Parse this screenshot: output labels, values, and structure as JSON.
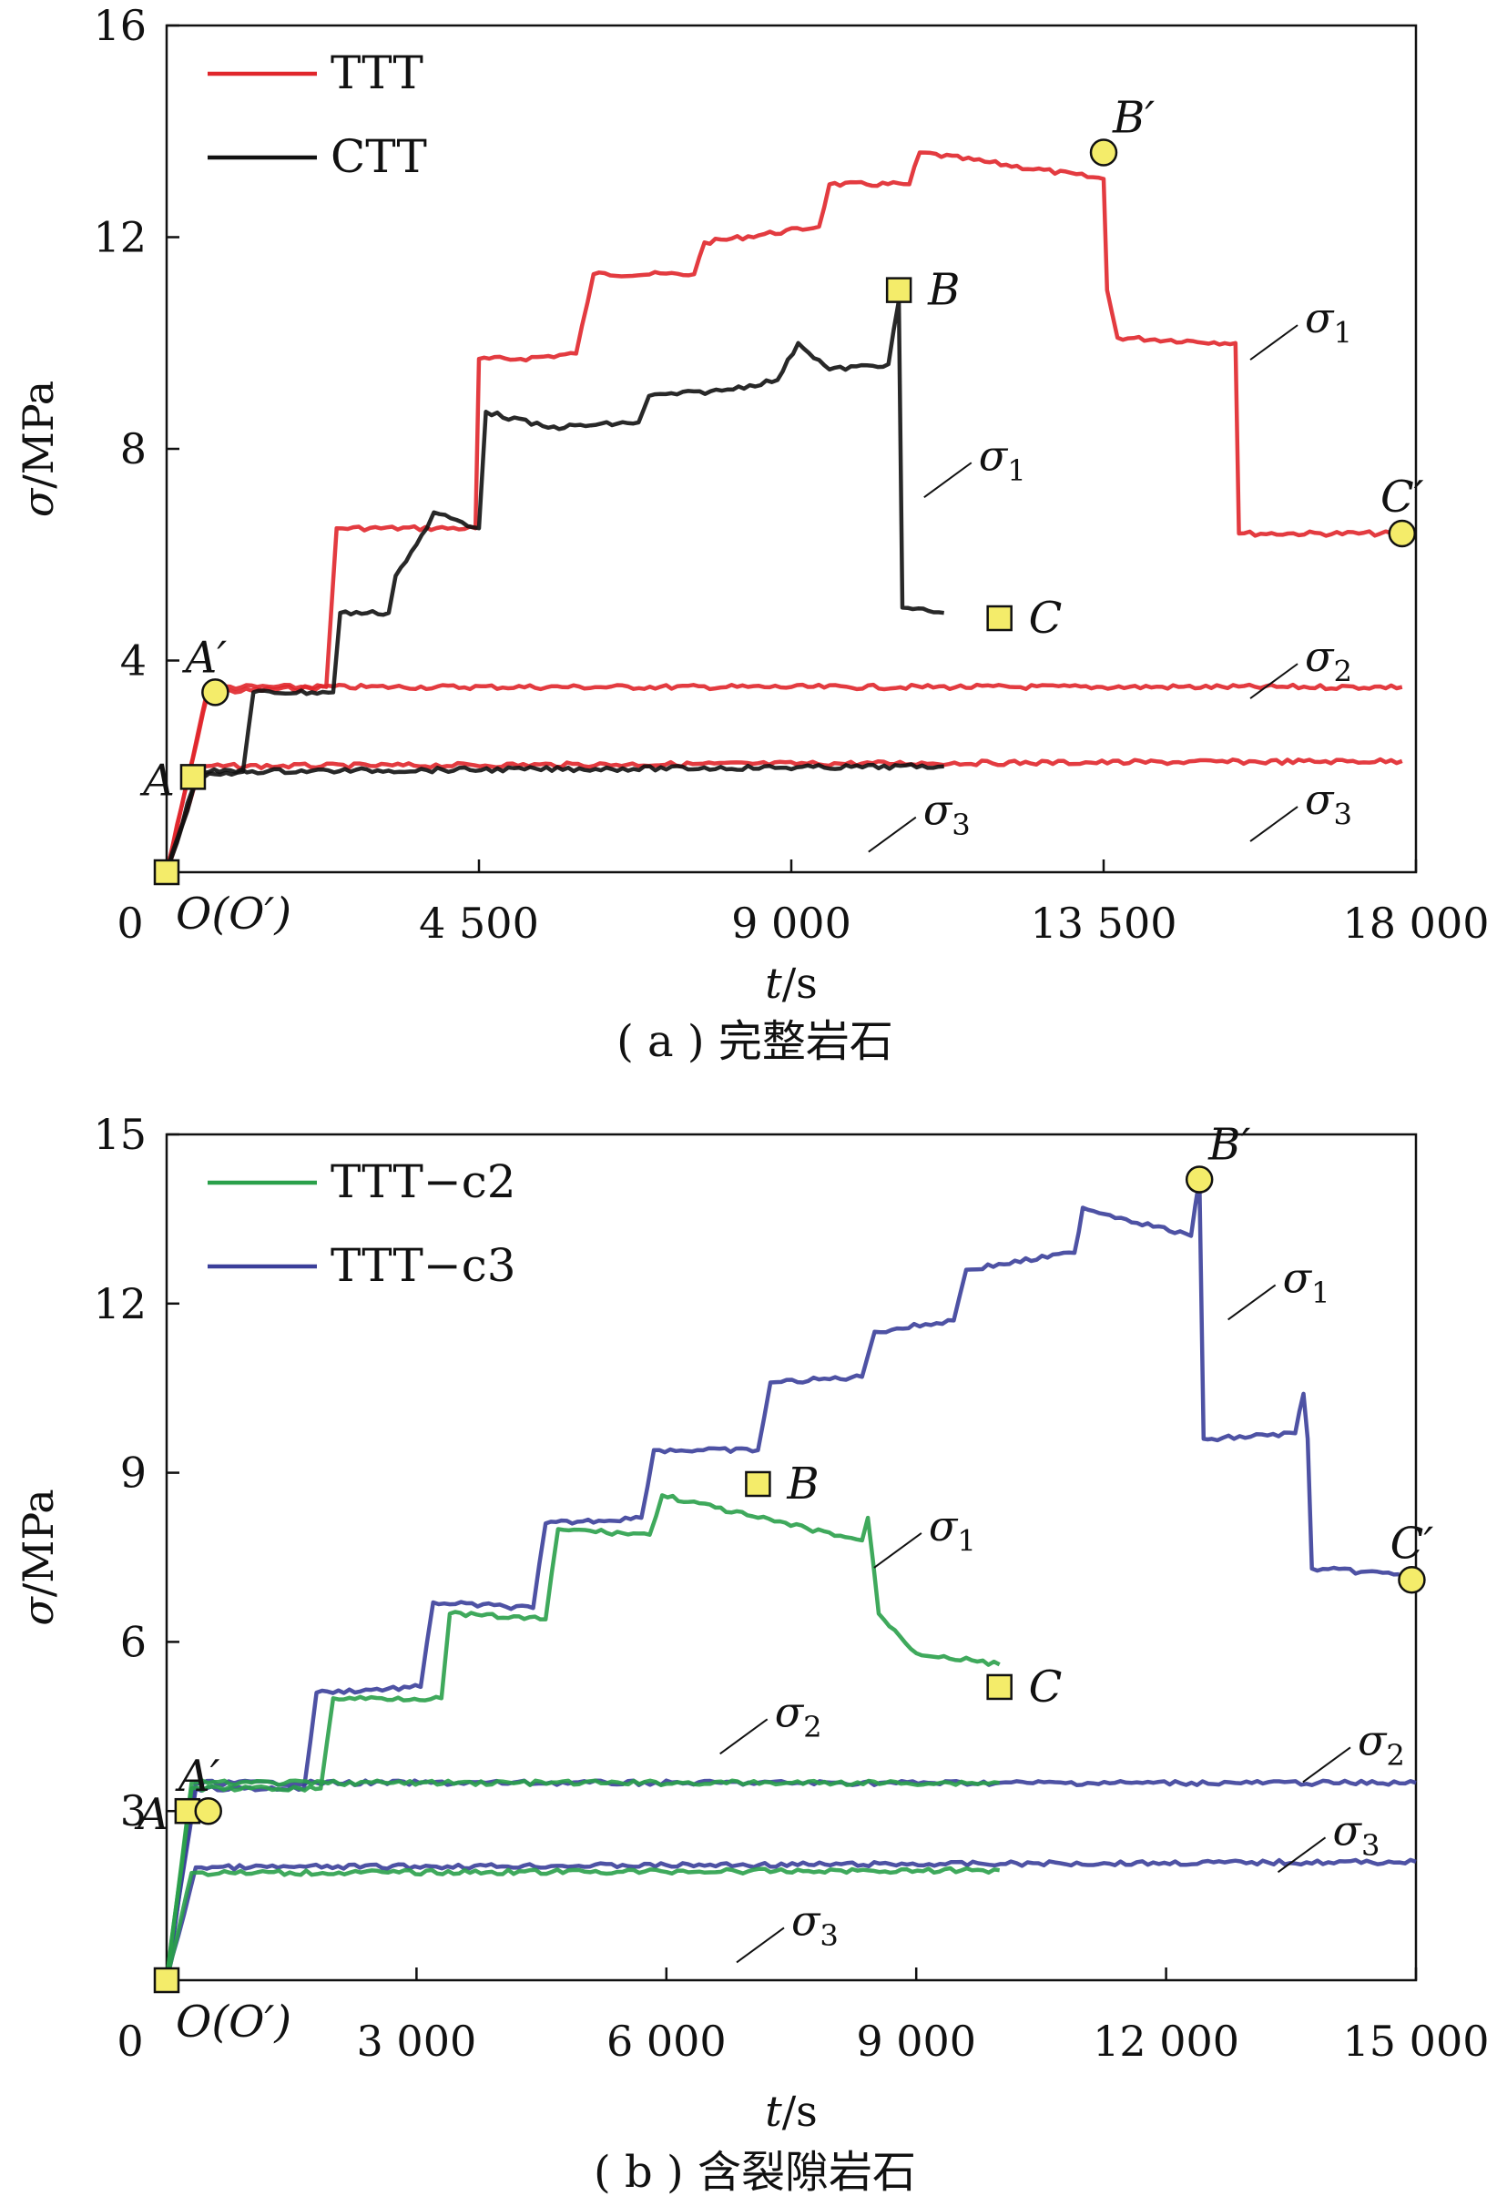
{
  "chart_data": [
    {
      "type": "line",
      "caption": "( a ) 完整岩石",
      "xlabel_var": "t",
      "xlabel_unit": "/s",
      "ylabel_var": "σ",
      "ylabel_unit": "/MPa",
      "xlim": [
        0,
        18000
      ],
      "ylim": [
        0,
        16
      ],
      "x_ticks": [
        4500,
        9000,
        13500,
        18000
      ],
      "x_tick_labels": [
        "4 500",
        "9 000",
        "13 500",
        "18 000"
      ],
      "y_ticks": [
        4,
        8,
        12,
        16
      ],
      "y_tick_labels": [
        "4",
        "8",
        "12",
        "16"
      ],
      "origin_label": "0",
      "legend": [
        "TTT",
        "CTT"
      ],
      "legend_position": "top-left",
      "colors": {
        "TTT": "#e0262b",
        "CTT": "#111111"
      },
      "series": [
        {
          "name": "TTT",
          "role": "σ1",
          "color": "#e0262b",
          "x": [
            0,
            600,
            2300,
            2450,
            4450,
            4500,
            5100,
            5900,
            6150,
            7600,
            7750,
            9400,
            9550,
            10700,
            10850,
            13500,
            13550,
            13700,
            15400,
            15450,
            17800
          ],
          "y": [
            0,
            3.4,
            3.5,
            6.5,
            6.5,
            9.7,
            9.7,
            9.8,
            11.3,
            11.3,
            11.9,
            12.2,
            13.0,
            13.0,
            13.6,
            13.1,
            11.0,
            10.1,
            10.0,
            6.4,
            6.4
          ]
        },
        {
          "name": "TTT",
          "role": "σ2",
          "color": "#e0262b",
          "x": [
            0,
            600,
            17800
          ],
          "y": [
            0,
            3.5,
            3.5
          ]
        },
        {
          "name": "TTT",
          "role": "σ3",
          "color": "#e0262b",
          "x": [
            0,
            500,
            17800
          ],
          "y": [
            0,
            2.0,
            2.1
          ]
        },
        {
          "name": "CTT",
          "role": "σ1",
          "color": "#111111",
          "x": [
            0,
            450,
            1100,
            1250,
            2400,
            2500,
            3200,
            3300,
            3750,
            3850,
            4500,
            4600,
            5500,
            6800,
            6950,
            8000,
            8800,
            9100,
            9550,
            10400,
            10550,
            10600,
            11200
          ],
          "y": [
            0,
            1.8,
            1.9,
            3.4,
            3.4,
            4.9,
            4.9,
            5.6,
            6.5,
            6.8,
            6.5,
            8.7,
            8.4,
            8.5,
            9.0,
            9.1,
            9.3,
            10.0,
            9.5,
            9.6,
            10.8,
            5.0,
            4.9
          ]
        },
        {
          "name": "CTT",
          "role": "σ3",
          "color": "#111111",
          "x": [
            0,
            450,
            11200
          ],
          "y": [
            0,
            1.9,
            2.0
          ]
        }
      ],
      "markers": [
        {
          "label": "O(O′)",
          "shape": "square",
          "x": 0,
          "y": 0
        },
        {
          "label": "A",
          "shape": "square",
          "x": 380,
          "y": 1.8
        },
        {
          "label": "A′",
          "shape": "circle",
          "x": 700,
          "y": 3.4
        },
        {
          "label": "B",
          "shape": "square",
          "x": 10550,
          "y": 11.0
        },
        {
          "label": "C",
          "shape": "square",
          "x": 12000,
          "y": 4.8
        },
        {
          "label": "B′",
          "shape": "circle",
          "x": 13500,
          "y": 13.6
        },
        {
          "label": "C′",
          "shape": "circle",
          "x": 17800,
          "y": 6.4
        }
      ],
      "annotations": [
        {
          "text": "σ1",
          "x": 16400,
          "y": 10.2
        },
        {
          "text": "σ1",
          "x": 11700,
          "y": 7.6
        },
        {
          "text": "σ2",
          "x": 16400,
          "y": 3.8
        },
        {
          "text": "σ3",
          "x": 16400,
          "y": 1.1
        },
        {
          "text": "σ3",
          "x": 10900,
          "y": 0.9
        }
      ]
    },
    {
      "type": "line",
      "caption": "( b ) 含裂隙岩石",
      "xlabel_var": "t",
      "xlabel_unit": "/s",
      "ylabel_var": "σ",
      "ylabel_unit": "/MPa",
      "xlim": [
        0,
        15000
      ],
      "ylim": [
        0,
        15
      ],
      "x_ticks": [
        3000,
        6000,
        9000,
        12000,
        15000
      ],
      "x_tick_labels": [
        "3 000",
        "6 000",
        "9 000",
        "12 000",
        "15 000"
      ],
      "y_ticks": [
        3,
        6,
        9,
        12,
        15
      ],
      "y_tick_labels": [
        "3",
        "6",
        "9",
        "12",
        "15"
      ],
      "origin_label": "0",
      "legend": [
        "TTT−c2",
        "TTT−c3"
      ],
      "legend_position": "top-left",
      "colors": {
        "TTT−c2": "#2aa04a",
        "TTT−c3": "#3b3f9a"
      },
      "series": [
        {
          "name": "TTT−c3",
          "role": "σ1",
          "color": "#3b3f9a",
          "x": [
            0,
            350,
            1650,
            1800,
            3050,
            3200,
            4400,
            4550,
            5700,
            5850,
            7100,
            7250,
            8350,
            8500,
            9450,
            9600,
            10900,
            11000,
            12300,
            12400,
            12450,
            12550,
            13550,
            13650,
            13700,
            13750,
            14800
          ],
          "y": [
            0,
            3.4,
            3.4,
            5.1,
            5.2,
            6.7,
            6.6,
            8.1,
            8.2,
            9.4,
            9.4,
            10.6,
            10.7,
            11.5,
            11.7,
            12.6,
            12.9,
            13.7,
            13.2,
            14.2,
            9.6,
            9.6,
            9.7,
            10.4,
            9.6,
            7.3,
            7.2
          ]
        },
        {
          "name": "TTT−c3",
          "role": "σ2",
          "color": "#3b3f9a",
          "x": [
            0,
            350,
            15000
          ],
          "y": [
            0,
            3.5,
            3.5
          ]
        },
        {
          "name": "TTT−c3",
          "role": "σ3",
          "color": "#3b3f9a",
          "x": [
            0,
            350,
            15000
          ],
          "y": [
            0,
            2.0,
            2.1
          ]
        },
        {
          "name": "TTT−c2",
          "role": "σ1",
          "color": "#2aa04a",
          "x": [
            0,
            300,
            1850,
            2000,
            3300,
            3400,
            4550,
            4700,
            5800,
            5950,
            7100,
            8350,
            8420,
            8550,
            9000,
            10000
          ],
          "y": [
            0,
            3.4,
            3.4,
            5.0,
            5.0,
            6.5,
            6.4,
            8.0,
            7.9,
            8.6,
            8.2,
            7.8,
            8.2,
            6.5,
            5.8,
            5.6
          ]
        },
        {
          "name": "TTT−c2",
          "role": "σ2",
          "color": "#2aa04a",
          "x": [
            0,
            300,
            10000
          ],
          "y": [
            0,
            3.5,
            3.5
          ]
        },
        {
          "name": "TTT−c2",
          "role": "σ3",
          "color": "#2aa04a",
          "x": [
            0,
            300,
            10000
          ],
          "y": [
            0,
            1.9,
            1.95
          ]
        }
      ],
      "markers": [
        {
          "label": "O(O′)",
          "shape": "square",
          "x": 0,
          "y": 0
        },
        {
          "label": "A",
          "shape": "square",
          "x": 250,
          "y": 3.0
        },
        {
          "label": "A′",
          "shape": "circle",
          "x": 500,
          "y": 3.0
        },
        {
          "label": "B",
          "shape": "square",
          "x": 7100,
          "y": 8.8
        },
        {
          "label": "C",
          "shape": "square",
          "x": 10000,
          "y": 5.2
        },
        {
          "label": "B′",
          "shape": "circle",
          "x": 12400,
          "y": 14.2
        },
        {
          "label": "C′",
          "shape": "circle",
          "x": 14950,
          "y": 7.1
        }
      ],
      "annotations": [
        {
          "text": "σ1",
          "x": 13400,
          "y": 12.2
        },
        {
          "text": "σ1",
          "x": 9150,
          "y": 7.8
        },
        {
          "text": "σ2",
          "x": 7300,
          "y": 4.5
        },
        {
          "text": "σ2",
          "x": 14300,
          "y": 4.0
        },
        {
          "text": "σ3",
          "x": 14000,
          "y": 2.4
        },
        {
          "text": "σ3",
          "x": 7500,
          "y": 0.8
        }
      ]
    }
  ]
}
